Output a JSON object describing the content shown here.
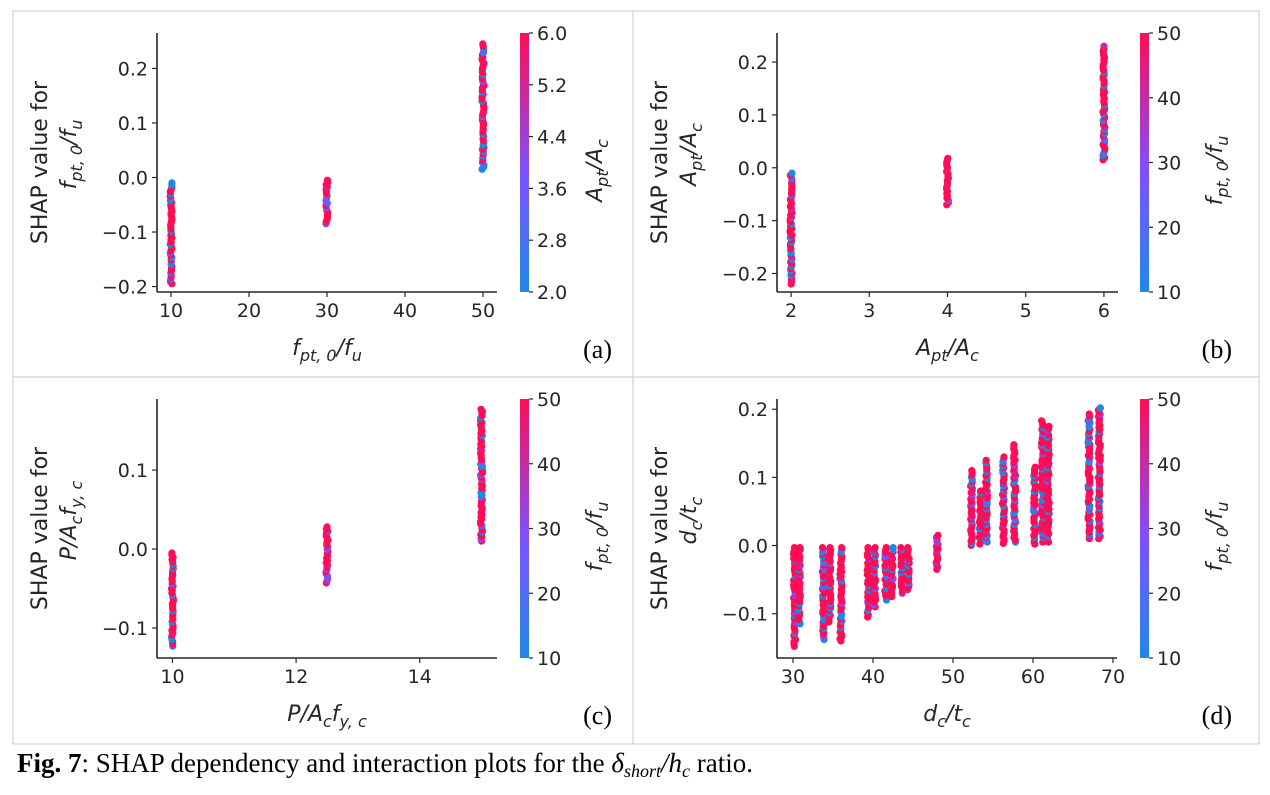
{
  "figure": {
    "caption_label": "Fig. 7",
    "caption_sep": ": ",
    "caption_text": "SHAP dependency and interaction plots for the",
    "caption_math_main": "δ",
    "caption_math_sub": "short",
    "caption_math_slash": "/h",
    "caption_math_sub2": "c",
    "caption_tail": " ratio.",
    "colors": {
      "low": "#1E88E5",
      "mid": "#7C52FF",
      "high": "#FF0D57",
      "frame": "#c8c8c8"
    }
  },
  "chart_data": [
    {
      "id": "a",
      "type": "scatter",
      "panel_label": "(a)",
      "xlabel": {
        "main": "f",
        "sub": "pt, 0",
        "tail": "/f",
        "sub2": "u"
      },
      "ylabel_line1": "SHAP value for",
      "ylabel_line2": {
        "main": "f",
        "sub": "pt, 0",
        "tail": "/f",
        "sub2": "u"
      },
      "colorbar_label": {
        "main": "A",
        "sub": "pt",
        "tail": "/A",
        "sub2": "c"
      },
      "xlim": [
        8.2,
        51.8
      ],
      "ylim": [
        -0.21,
        0.265
      ],
      "xticks": [
        10,
        20,
        30,
        40,
        50
      ],
      "yticks": [
        -0.2,
        -0.1,
        0.0,
        0.1,
        0.2
      ],
      "ytick_labels": [
        "−0.2",
        "−0.1",
        "0.0",
        "0.1",
        "0.2"
      ],
      "colorbar_range": [
        2.0,
        6.0
      ],
      "colorbar_ticks": [
        2.0,
        2.8,
        3.6,
        4.4,
        5.2,
        6.0
      ],
      "colorbar_tick_labels": [
        "2.0",
        "2.8",
        "3.6",
        "4.4",
        "5.2",
        "6.0"
      ],
      "clusters": [
        {
          "x": 10,
          "y_min": -0.195,
          "y_max": -0.01,
          "color_min": 2.0,
          "color_max": 6.0
        },
        {
          "x": 30,
          "y_min": -0.085,
          "y_max": -0.005,
          "color_min": 3.6,
          "color_max": 6.0
        },
        {
          "x": 50,
          "y_min": 0.015,
          "y_max": 0.245,
          "color_min": 2.0,
          "color_max": 6.0
        }
      ]
    },
    {
      "id": "b",
      "type": "scatter",
      "panel_label": "(b)",
      "xlabel": {
        "main": "A",
        "sub": "pt",
        "tail": "/A",
        "sub2": "c"
      },
      "ylabel_line1": "SHAP value for",
      "ylabel_line2": {
        "main": "A",
        "sub": "pt",
        "tail": "/A",
        "sub2": "c"
      },
      "colorbar_label": {
        "main": "f",
        "sub": "pt, 0",
        "tail": "/f",
        "sub2": "u"
      },
      "xlim": [
        1.82,
        6.18
      ],
      "ylim": [
        -0.235,
        0.255
      ],
      "xticks": [
        2,
        3,
        4,
        5,
        6
      ],
      "yticks": [
        -0.2,
        -0.1,
        0.0,
        0.1,
        0.2
      ],
      "ytick_labels": [
        "−0.2",
        "−0.1",
        "0.0",
        "0.1",
        "0.2"
      ],
      "colorbar_range": [
        10,
        50
      ],
      "colorbar_ticks": [
        10,
        20,
        30,
        40,
        50
      ],
      "colorbar_tick_labels": [
        "10",
        "20",
        "30",
        "40",
        "50"
      ],
      "clusters": [
        {
          "x": 2,
          "y_min": -0.22,
          "y_max": -0.01,
          "color_min": 10,
          "color_max": 50
        },
        {
          "x": 4,
          "y_min": -0.07,
          "y_max": 0.018,
          "color_min": 30,
          "color_max": 50
        },
        {
          "x": 6,
          "y_min": 0.015,
          "y_max": 0.23,
          "color_min": 10,
          "color_max": 50
        }
      ]
    },
    {
      "id": "c",
      "type": "scatter",
      "panel_label": "(c)",
      "xlabel": {
        "main": "P",
        "sub": "",
        "tail": "/A",
        "sub2": "c",
        "tail2": "f",
        "sub3": "y, c"
      },
      "ylabel_line1": "SHAP value for",
      "ylabel_line2": {
        "main": "P",
        "sub": "",
        "tail": "/A",
        "sub2": "c",
        "tail2": "f",
        "sub3": "y, c"
      },
      "colorbar_label": {
        "main": "f",
        "sub": "pt, 0",
        "tail": "/f",
        "sub2": "u"
      },
      "xlim": [
        9.75,
        15.25
      ],
      "ylim": [
        -0.138,
        0.19
      ],
      "xticks": [
        10,
        12,
        14
      ],
      "yticks": [
        -0.1,
        0.0,
        0.1
      ],
      "ytick_labels": [
        "−0.1",
        "0.0",
        "0.1"
      ],
      "colorbar_range": [
        10,
        50
      ],
      "colorbar_ticks": [
        10,
        20,
        30,
        40,
        50
      ],
      "colorbar_tick_labels": [
        "10",
        "20",
        "30",
        "40",
        "50"
      ],
      "clusters": [
        {
          "x": 10,
          "y_min": -0.123,
          "y_max": -0.005,
          "color_min": 10,
          "color_max": 50
        },
        {
          "x": 12.5,
          "y_min": -0.043,
          "y_max": 0.028,
          "color_min": 30,
          "color_max": 50
        },
        {
          "x": 15,
          "y_min": 0.01,
          "y_max": 0.177,
          "color_min": 10,
          "color_max": 50
        }
      ]
    },
    {
      "id": "d",
      "type": "scatter",
      "panel_label": "(d)",
      "xlabel": {
        "main": "d",
        "sub": "c",
        "tail": "/t",
        "sub2": "c"
      },
      "ylabel_line1": "SHAP value for",
      "ylabel_line2": {
        "main": "d",
        "sub": "c",
        "tail": "/t",
        "sub2": "c"
      },
      "colorbar_label": {
        "main": "f",
        "sub": "pt, 0",
        "tail": "/f",
        "sub2": "u"
      },
      "xlim": [
        28,
        70.5
      ],
      "ylim": [
        -0.165,
        0.215
      ],
      "xticks": [
        30,
        40,
        50,
        60,
        70
      ],
      "yticks": [
        -0.1,
        0.0,
        0.1,
        0.2
      ],
      "ytick_labels": [
        "−0.1",
        "0.0",
        "0.1",
        "0.2"
      ],
      "colorbar_range": [
        10,
        50
      ],
      "colorbar_ticks": [
        10,
        20,
        30,
        40,
        50
      ],
      "colorbar_tick_labels": [
        "10",
        "20",
        "30",
        "40",
        "50"
      ],
      "clusters": [
        {
          "x": 30.2,
          "y_min": -0.148,
          "y_max": -0.003,
          "color_min": 10,
          "color_max": 50
        },
        {
          "x": 30.8,
          "y_min": -0.115,
          "y_max": -0.003,
          "color_min": 10,
          "color_max": 50
        },
        {
          "x": 33.8,
          "y_min": -0.138,
          "y_max": -0.003,
          "color_min": 10,
          "color_max": 50
        },
        {
          "x": 34.6,
          "y_min": -0.112,
          "y_max": -0.003,
          "color_min": 10,
          "color_max": 50
        },
        {
          "x": 36.0,
          "y_min": -0.14,
          "y_max": -0.003,
          "color_min": 10,
          "color_max": 50
        },
        {
          "x": 39.4,
          "y_min": -0.105,
          "y_max": -0.003,
          "color_min": 10,
          "color_max": 50
        },
        {
          "x": 40.2,
          "y_min": -0.09,
          "y_max": -0.003,
          "color_min": 10,
          "color_max": 50
        },
        {
          "x": 41.6,
          "y_min": -0.08,
          "y_max": -0.003,
          "color_min": 10,
          "color_max": 50
        },
        {
          "x": 42.4,
          "y_min": -0.075,
          "y_max": -0.003,
          "color_min": 10,
          "color_max": 50
        },
        {
          "x": 43.6,
          "y_min": -0.07,
          "y_max": -0.003,
          "color_min": 10,
          "color_max": 50
        },
        {
          "x": 44.4,
          "y_min": -0.065,
          "y_max": -0.003,
          "color_min": 10,
          "color_max": 50
        },
        {
          "x": 48.0,
          "y_min": -0.035,
          "y_max": 0.015,
          "color_min": 30,
          "color_max": 50
        },
        {
          "x": 52.3,
          "y_min": 0.0,
          "y_max": 0.11,
          "color_min": 10,
          "color_max": 50
        },
        {
          "x": 53.4,
          "y_min": 0.002,
          "y_max": 0.08,
          "color_min": 10,
          "color_max": 50
        },
        {
          "x": 54.2,
          "y_min": 0.005,
          "y_max": 0.125,
          "color_min": 10,
          "color_max": 50
        },
        {
          "x": 56.3,
          "y_min": 0.003,
          "y_max": 0.13,
          "color_min": 10,
          "color_max": 50
        },
        {
          "x": 57.7,
          "y_min": 0.005,
          "y_max": 0.148,
          "color_min": 10,
          "color_max": 50
        },
        {
          "x": 60.2,
          "y_min": 0.002,
          "y_max": 0.115,
          "color_min": 10,
          "color_max": 50
        },
        {
          "x": 61.2,
          "y_min": 0.005,
          "y_max": 0.183,
          "color_min": 10,
          "color_max": 50
        },
        {
          "x": 61.9,
          "y_min": 0.005,
          "y_max": 0.175,
          "color_min": 10,
          "color_max": 50
        },
        {
          "x": 67.0,
          "y_min": 0.01,
          "y_max": 0.193,
          "color_min": 10,
          "color_max": 50
        },
        {
          "x": 68.3,
          "y_min": 0.01,
          "y_max": 0.202,
          "color_min": 10,
          "color_max": 50
        }
      ]
    }
  ]
}
